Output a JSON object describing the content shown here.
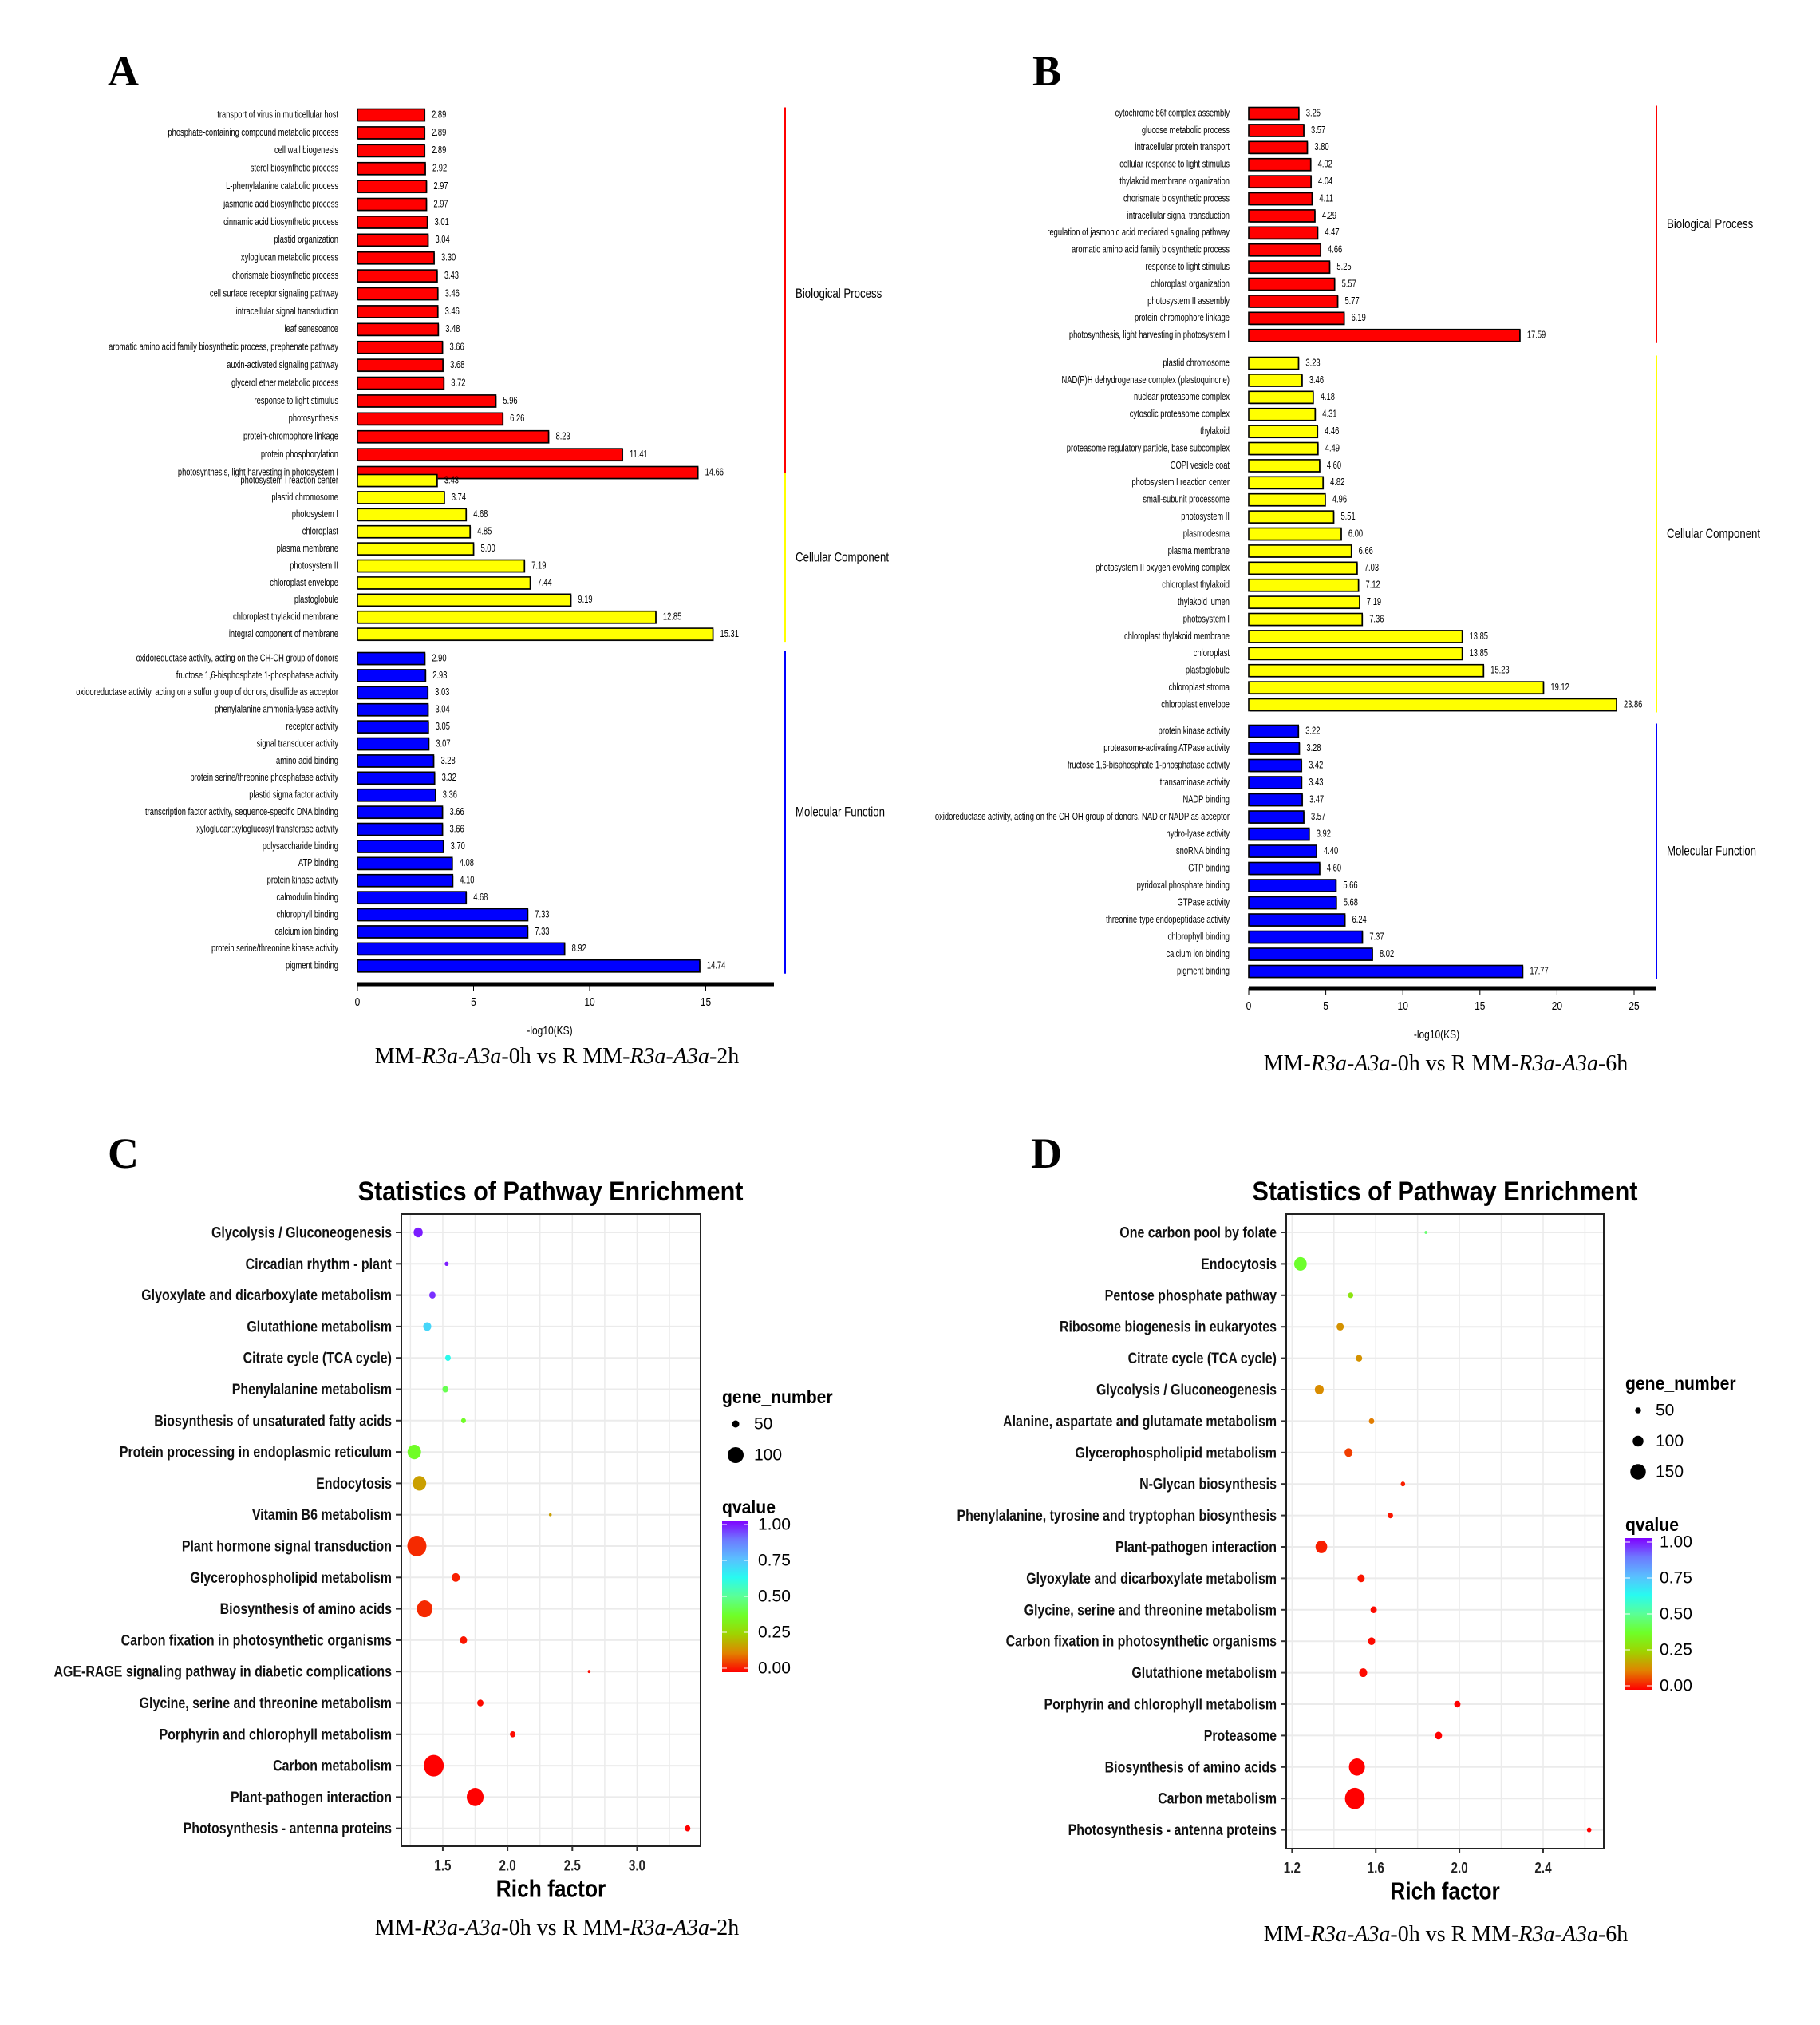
{
  "panels": {
    "A": {
      "letter": "A",
      "caption_parts": [
        "MM-",
        "R3a-A3a",
        "-0h vs R MM-",
        "R3a-A3a",
        "-2h"
      ]
    },
    "B": {
      "letter": "B",
      "caption_parts": [
        "MM-",
        "R3a-A3a",
        "-0h vs R MM-",
        "R3a-A3a",
        "-6h"
      ]
    },
    "C": {
      "letter": "C",
      "title": "Statistics of Pathway Enrichment",
      "caption_parts": [
        "MM-",
        "R3a-A3a",
        "-0h vs R MM-",
        "R3a-A3a",
        "-2h"
      ]
    },
    "D": {
      "letter": "D",
      "title": "Statistics of Pathway Enrichment",
      "caption_parts": [
        "MM-",
        "R3a-A3a",
        "-0h vs R MM-",
        "R3a-A3a",
        "-6h"
      ]
    }
  },
  "chart_data": [
    {
      "panel": "A",
      "type": "bar",
      "orientation": "horizontal",
      "xlabel": "-log10(KS)",
      "xlim": [
        0,
        17.9
      ],
      "xticks": [
        0,
        5,
        10,
        15
      ],
      "groups": [
        {
          "name": "Biological Process",
          "color": "#FF0000",
          "categories": [
            "transport of virus in multicellular host",
            "phosphate-containing compound metabolic process",
            "cell wall biogenesis",
            "sterol biosynthetic process",
            "L-phenylalanine catabolic process",
            "jasmonic acid biosynthetic process",
            "cinnamic acid biosynthetic process",
            "plastid organization",
            "xyloglucan metabolic process",
            "chorismate biosynthetic process",
            "cell surface receptor signaling pathway",
            "intracellular signal transduction",
            "leaf senescence",
            "aromatic amino acid family biosynthetic process, prephenate pathway",
            "auxin-activated signaling pathway",
            "glycerol ether metabolic process",
            "response to light stimulus",
            "photosynthesis",
            "protein-chromophore linkage",
            "protein phosphorylation",
            "photosynthesis, light harvesting in photosystem I"
          ],
          "values": [
            "2.89",
            "2.89",
            "2.89",
            "2.92",
            "2.97",
            "2.97",
            "3.01",
            "3.04",
            "3.30",
            "3.43",
            "3.46",
            "3.46",
            "3.48",
            "3.66",
            "3.68",
            "3.72",
            "5.96",
            "6.26",
            "8.23",
            "11.41",
            "14.66"
          ]
        },
        {
          "name": "Cellular Component",
          "color": "#FFFF00",
          "categories": [
            "photosystem I reaction center",
            "plastid chromosome",
            "photosystem I",
            "chloroplast",
            "plasma membrane",
            "photosystem II",
            "chloroplast envelope",
            "plastoglobule",
            "chloroplast thylakoid membrane",
            "integral component of membrane"
          ],
          "values": [
            "3.43",
            "3.74",
            "4.68",
            "4.85",
            "5.00",
            "7.19",
            "7.44",
            "9.19",
            "12.85",
            "15.31"
          ]
        },
        {
          "name": "Molecular Function",
          "color": "#0000FF",
          "categories": [
            "oxidoreductase activity, acting on the CH-CH group of donors",
            "fructose 1,6-bisphosphate 1-phosphatase activity",
            "oxidoreductase activity, acting on a sulfur group of donors, disulfide as acceptor",
            "phenylalanine ammonia-lyase activity",
            "receptor activity",
            "signal transducer activity",
            "amino acid binding",
            "protein serine/threonine phosphatase activity",
            "plastid sigma factor activity",
            "transcription factor activity, sequence-specific DNA binding",
            "xyloglucan:xyloglucosyl transferase activity",
            "polysaccharide binding",
            "ATP binding",
            "protein kinase activity",
            "calmodulin binding",
            "chlorophyll binding",
            "calcium ion binding",
            "protein serine/threonine kinase activity",
            "pigment binding"
          ],
          "values": [
            "2.90",
            "2.93",
            "3.03",
            "3.04",
            "3.05",
            "3.07",
            "3.28",
            "3.32",
            "3.36",
            "3.66",
            "3.66",
            "3.70",
            "4.08",
            "4.10",
            "4.68",
            "7.33",
            "7.33",
            "8.92",
            "14.74"
          ]
        }
      ]
    },
    {
      "panel": "B",
      "type": "bar",
      "orientation": "horizontal",
      "xlabel": "-log10(KS)",
      "xlim": [
        0,
        26.4
      ],
      "xticks": [
        0,
        5,
        10,
        15,
        20,
        25
      ],
      "groups": [
        {
          "name": "Biological Process",
          "color": "#FF0000",
          "categories": [
            "cytochrome b6f complex assembly",
            "glucose metabolic process",
            "intracellular protein transport",
            "cellular response to light stimulus",
            "thylakoid membrane organization",
            "chorismate biosynthetic process",
            "intracellular signal transduction",
            "regulation of jasmonic acid mediated signaling pathway",
            "aromatic amino acid family biosynthetic process",
            "response to light stimulus",
            "chloroplast organization",
            "photosystem II assembly",
            "protein-chromophore linkage",
            "photosynthesis, light harvesting in photosystem I"
          ],
          "values": [
            "3.25",
            "3.57",
            "3.80",
            "4.02",
            "4.04",
            "4.11",
            "4.29",
            "4.47",
            "4.66",
            "5.25",
            "5.57",
            "5.77",
            "6.19",
            "17.59"
          ]
        },
        {
          "name": "Cellular Component",
          "color": "#FFFF00",
          "categories": [
            "plastid chromosome",
            "NAD(P)H dehydrogenase complex (plastoquinone)",
            "nuclear proteasome complex",
            "cytosolic proteasome complex",
            "thylakoid",
            "proteasome regulatory particle, base subcomplex",
            "COPI vesicle coat",
            "photosystem I reaction center",
            "small-subunit processome",
            "photosystem II",
            "plasmodesma",
            "plasma membrane",
            "photosystem II oxygen evolving complex",
            "chloroplast thylakoid",
            "thylakoid lumen",
            "photosystem I",
            "chloroplast thylakoid membrane",
            "chloroplast",
            "plastoglobule",
            "chloroplast stroma",
            "chloroplast envelope"
          ],
          "values": [
            "3.23",
            "3.46",
            "4.18",
            "4.31",
            "4.46",
            "4.49",
            "4.60",
            "4.82",
            "4.96",
            "5.51",
            "6.00",
            "6.66",
            "7.03",
            "7.12",
            "7.19",
            "7.36",
            "13.85",
            "13.85",
            "15.23",
            "19.12",
            "23.86"
          ]
        },
        {
          "name": "Molecular Function",
          "color": "#0000FF",
          "categories": [
            "protein kinase activity",
            "proteasome-activating ATPase activity",
            "fructose 1,6-bisphosphate 1-phosphatase activity",
            "transaminase activity",
            "NADP binding",
            "oxidoreductase activity, acting on the CH-OH group of donors, NAD or NADP as acceptor",
            "hydro-lyase activity",
            "snoRNA binding",
            "GTP binding",
            "pyridoxal phosphate binding",
            "GTPase activity",
            "threonine-type endopeptidase activity",
            "chlorophyll binding",
            "calcium ion binding",
            "pigment binding"
          ],
          "values": [
            "3.22",
            "3.28",
            "3.42",
            "3.43",
            "3.47",
            "3.57",
            "3.92",
            "4.40",
            "4.60",
            "5.66",
            "5.68",
            "6.24",
            "7.37",
            "8.02",
            "17.77"
          ]
        }
      ]
    },
    {
      "panel": "C",
      "type": "scatter",
      "title": "Statistics of Pathway Enrichment",
      "xlabel": "Rich factor",
      "xlim": [
        1.18,
        3.49
      ],
      "xticks": [
        "1.5",
        "2.0",
        "2.5",
        "3.0"
      ],
      "grid": true,
      "legend_position": "right",
      "size_legend": {
        "title": "gene_number",
        "values": [
          "50",
          "100"
        ]
      },
      "color_legend": {
        "title": "qvalue",
        "ticks": [
          "1.00",
          "0.75",
          "0.50",
          "0.25",
          "0.00"
        ],
        "low_color": "#FF0000",
        "high_color": "#8000FF"
      },
      "points": [
        {
          "pathway": "Glycolysis / Gluconeogenesis",
          "rich_factor": 1.31,
          "gene_number": 61,
          "qvalue": 0.97
        },
        {
          "pathway": "Circadian rhythm - plant",
          "rich_factor": 1.53,
          "gene_number": 32,
          "qvalue": 0.97
        },
        {
          "pathway": "Glyoxylate and dicarboxylate metabolism",
          "rich_factor": 1.42,
          "gene_number": 45,
          "qvalue": 0.95
        },
        {
          "pathway": "Glutathione metabolism",
          "rich_factor": 1.38,
          "gene_number": 55,
          "qvalue": 0.7
        },
        {
          "pathway": "Citrate cycle (TCA cycle)",
          "rich_factor": 1.54,
          "gene_number": 41,
          "qvalue": 0.62
        },
        {
          "pathway": "Phenylalanine metabolism",
          "rich_factor": 1.52,
          "gene_number": 43,
          "qvalue": 0.42
        },
        {
          "pathway": "Biosynthesis of unsaturated fatty acids",
          "rich_factor": 1.66,
          "gene_number": 36,
          "qvalue": 0.37
        },
        {
          "pathway": "Protein processing in endoplasmic reticulum",
          "rich_factor": 1.28,
          "gene_number": 86,
          "qvalue": 0.37
        },
        {
          "pathway": "Endocytosis",
          "rich_factor": 1.32,
          "gene_number": 86,
          "qvalue": 0.17
        },
        {
          "pathway": "Vitamin B6 metabolism",
          "rich_factor": 2.33,
          "gene_number": 25,
          "qvalue": 0.17
        },
        {
          "pathway": "Plant hormone signal transduction",
          "rich_factor": 1.3,
          "gene_number": 118,
          "qvalue": 0.04
        },
        {
          "pathway": "Glycerophospholipid metabolism",
          "rich_factor": 1.6,
          "gene_number": 55,
          "qvalue": 0.03
        },
        {
          "pathway": "Biosynthesis of amino acids",
          "rich_factor": 1.36,
          "gene_number": 98,
          "qvalue": 0.04
        },
        {
          "pathway": "Carbon fixation in photosynthetic organisms",
          "rich_factor": 1.66,
          "gene_number": 50,
          "qvalue": 0.02
        },
        {
          "pathway": "AGE-RAGE signaling pathway in diabetic complications",
          "rich_factor": 2.63,
          "gene_number": 25,
          "qvalue": 0.01
        },
        {
          "pathway": "Glycine, serine and threonine metabolism",
          "rich_factor": 1.79,
          "gene_number": 45,
          "qvalue": 0.01
        },
        {
          "pathway": "Porphyrin and chlorophyll metabolism",
          "rich_factor": 2.04,
          "gene_number": 41,
          "qvalue": 0.01
        },
        {
          "pathway": "Carbon metabolism",
          "rich_factor": 1.43,
          "gene_number": 123,
          "qvalue": 0.0
        },
        {
          "pathway": "Plant-pathogen interaction",
          "rich_factor": 1.75,
          "gene_number": 105,
          "qvalue": 0.0
        },
        {
          "pathway": "Photosynthesis - antenna proteins",
          "rich_factor": 3.39,
          "gene_number": 41,
          "qvalue": 0.0
        }
      ]
    },
    {
      "panel": "D",
      "type": "scatter",
      "title": "Statistics of Pathway Enrichment",
      "xlabel": "Rich factor",
      "xlim": [
        1.172,
        2.69
      ],
      "xticks": [
        "1.2",
        "1.6",
        "2.0",
        "2.4"
      ],
      "grid": true,
      "legend_position": "right",
      "size_legend": {
        "title": "gene_number",
        "values": [
          "50",
          "100",
          "150"
        ]
      },
      "color_legend": {
        "title": "qvalue",
        "ticks": [
          "1.00",
          "0.75",
          "0.50",
          "0.25",
          "0.00"
        ],
        "low_color": "#FF0000",
        "high_color": "#8000FF"
      },
      "points": [
        {
          "pathway": "One carbon pool by folate",
          "rich_factor": 1.84,
          "gene_number": 17,
          "qvalue": 0.45
        },
        {
          "pathway": "Endocytosis",
          "rich_factor": 1.24,
          "gene_number": 119,
          "qvalue": 0.38
        },
        {
          "pathway": "Pentose phosphate pathway",
          "rich_factor": 1.48,
          "gene_number": 44,
          "qvalue": 0.3
        },
        {
          "pathway": "Ribosome biogenesis in eukaryotes",
          "rich_factor": 1.43,
          "gene_number": 63,
          "qvalue": 0.15
        },
        {
          "pathway": "Citrate cycle (TCA cycle)",
          "rich_factor": 1.52,
          "gene_number": 54,
          "qvalue": 0.15
        },
        {
          "pathway": "Glycolysis / Gluconeogenesis",
          "rich_factor": 1.33,
          "gene_number": 81,
          "qvalue": 0.14
        },
        {
          "pathway": "Alanine, aspartate and glutamate metabolism",
          "rich_factor": 1.58,
          "gene_number": 44,
          "qvalue": 0.12
        },
        {
          "pathway": "Glycerophospholipid metabolism",
          "rich_factor": 1.47,
          "gene_number": 72,
          "qvalue": 0.06
        },
        {
          "pathway": "N-Glycan biosynthesis",
          "rich_factor": 1.73,
          "gene_number": 35,
          "qvalue": 0.03
        },
        {
          "pathway": "Phenylalanine, tyrosine and tryptophan biosynthesis",
          "rich_factor": 1.67,
          "gene_number": 44,
          "qvalue": 0.02
        },
        {
          "pathway": "Plant-pathogen interaction",
          "rich_factor": 1.34,
          "gene_number": 110,
          "qvalue": 0.03
        },
        {
          "pathway": "Glyoxylate and dicarboxylate metabolism",
          "rich_factor": 1.53,
          "gene_number": 63,
          "qvalue": 0.02
        },
        {
          "pathway": "Glycine, serine and threonine metabolism",
          "rich_factor": 1.59,
          "gene_number": 54,
          "qvalue": 0.01
        },
        {
          "pathway": "Carbon fixation in photosynthetic organisms",
          "rich_factor": 1.58,
          "gene_number": 63,
          "qvalue": 0.01
        },
        {
          "pathway": "Glutathione metabolism",
          "rich_factor": 1.54,
          "gene_number": 72,
          "qvalue": 0.01
        },
        {
          "pathway": "Porphyrin and chlorophyll metabolism",
          "rich_factor": 1.99,
          "gene_number": 54,
          "qvalue": 0.0
        },
        {
          "pathway": "Proteasome",
          "rich_factor": 1.9,
          "gene_number": 63,
          "qvalue": 0.0
        },
        {
          "pathway": "Biosynthesis of amino acids",
          "rich_factor": 1.51,
          "gene_number": 154,
          "qvalue": 0.0
        },
        {
          "pathway": "Carbon metabolism",
          "rich_factor": 1.5,
          "gene_number": 193,
          "qvalue": 0.0
        },
        {
          "pathway": "Photosynthesis - antenna proteins",
          "rich_factor": 2.62,
          "gene_number": 35,
          "qvalue": 0.0
        }
      ]
    }
  ]
}
